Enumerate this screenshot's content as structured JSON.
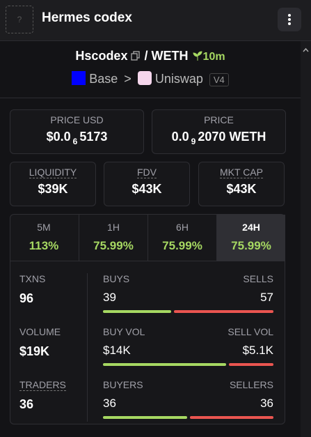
{
  "header": {
    "icon": "?",
    "title": "Hermes codex"
  },
  "token": {
    "name": "Hscodex",
    "separator": "/",
    "quote": "WETH",
    "age": "10m",
    "chain": "Base",
    "arrow": ">",
    "dex": "Uniswap",
    "version": "V4"
  },
  "prices": [
    {
      "label": "PRICE USD",
      "lead": "$0.0",
      "zeros": "6",
      "rest": "5173"
    },
    {
      "label": "PRICE",
      "lead": "0.0",
      "zeros": "9",
      "rest": "2070 WETH"
    }
  ],
  "metrics": [
    {
      "label": "LIQUIDITY",
      "value": "$39K"
    },
    {
      "label": "FDV",
      "value": "$43K"
    },
    {
      "label": "MKT CAP",
      "value": "$43K"
    }
  ],
  "tabs": {
    "active": 3,
    "items": [
      {
        "label": "5M",
        "change": "113%"
      },
      {
        "label": "1H",
        "change": "75.99%"
      },
      {
        "label": "6H",
        "change": "75.99%"
      },
      {
        "label": "24H",
        "change": "75.99%"
      }
    ]
  },
  "stats": [
    {
      "label": "TXNS",
      "value": "96"
    },
    {
      "label": "VOLUME",
      "value": "$19K"
    },
    {
      "label": "TRADERS",
      "value": "36"
    }
  ],
  "splits": [
    {
      "left_label": "BUYS",
      "right_label": "SELLS",
      "left": 39,
      "right": 57
    },
    {
      "left_label": "BUY VOL",
      "right_label": "SELL VOL",
      "left": 14000,
      "left_label_value": "$14K",
      "right": 5100,
      "right_label_value": "$5.1K"
    },
    {
      "left_label": "BUYERS",
      "right_label": "SELLERS",
      "left": 36,
      "right": 36
    }
  ]
}
